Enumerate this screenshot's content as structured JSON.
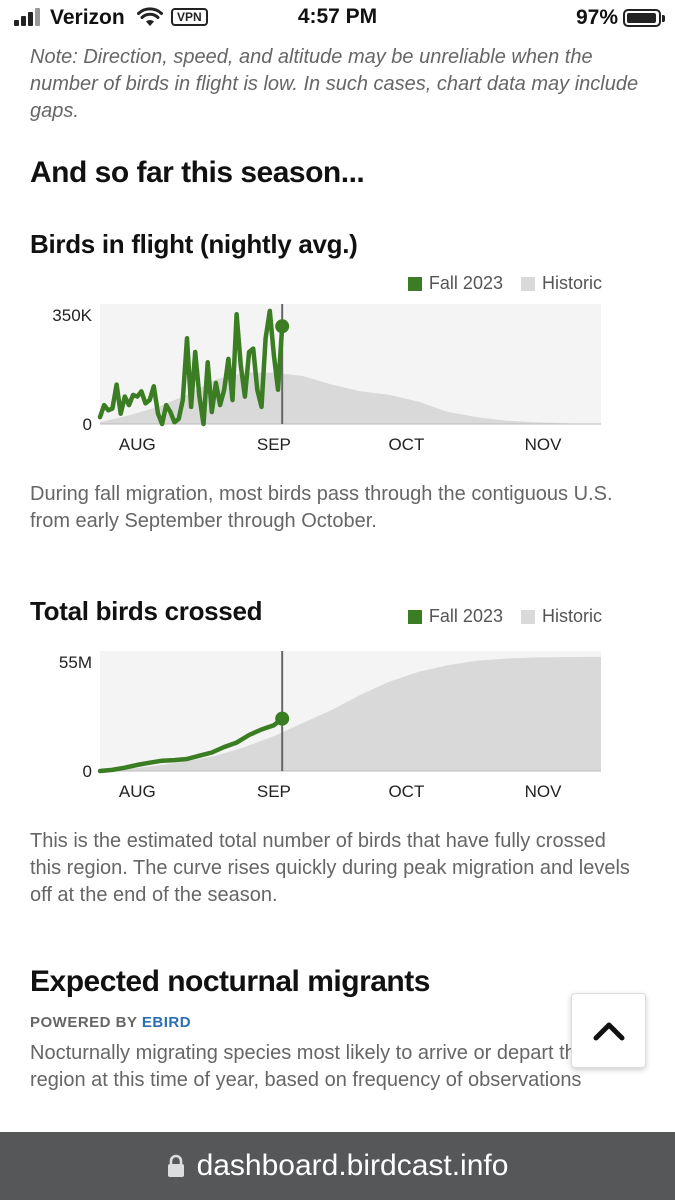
{
  "status": {
    "carrier": "Verizon",
    "vpn": "VPN",
    "time": "4:57 PM",
    "battery": "97%",
    "battery_level": 0.97
  },
  "note": "Note: Direction, speed, and altitude may be unreliable when the number of birds in flight is low. In such cases, chart data may include gaps.",
  "season_heading": "And so far this season...",
  "colors": {
    "fall": "#3a7d22",
    "historic": "#d9d9d9",
    "link": "#2a6fb3"
  },
  "flight_chart": {
    "heading": "Birds in flight (nightly avg.)",
    "legend": [
      "Fall 2023",
      "Historic"
    ],
    "chart_data": {
      "type": "area",
      "y_tick_labels": [
        "350K",
        "0"
      ],
      "x_tick_labels": [
        "AUG",
        "SEP",
        "OCT",
        "NOV"
      ],
      "ylim": [
        0,
        350000
      ],
      "current_date": "2023-09-14",
      "series": [
        {
          "name": "Fall 2023",
          "x": [
            "2023-08-01",
            "2023-08-02",
            "2023-08-03",
            "2023-08-04",
            "2023-08-05",
            "2023-08-06",
            "2023-08-07",
            "2023-08-08",
            "2023-08-09",
            "2023-08-10",
            "2023-08-11",
            "2023-08-12",
            "2023-08-13",
            "2023-08-14",
            "2023-08-15",
            "2023-08-16",
            "2023-08-17",
            "2023-08-18",
            "2023-08-19",
            "2023-08-20",
            "2023-08-21",
            "2023-08-22",
            "2023-08-23",
            "2023-08-24",
            "2023-08-25",
            "2023-08-26",
            "2023-08-27",
            "2023-08-28",
            "2023-08-29",
            "2023-08-30",
            "2023-08-31",
            "2023-09-01",
            "2023-09-02",
            "2023-09-03",
            "2023-09-04",
            "2023-09-05",
            "2023-09-06",
            "2023-09-07",
            "2023-09-08",
            "2023-09-09",
            "2023-09-10",
            "2023-09-11",
            "2023-09-12",
            "2023-09-13",
            "2023-09-14"
          ],
          "values": [
            20000,
            55000,
            40000,
            45000,
            115000,
            30000,
            80000,
            55000,
            85000,
            80000,
            95000,
            60000,
            70000,
            110000,
            30000,
            0,
            55000,
            35000,
            5000,
            15000,
            70000,
            250000,
            50000,
            210000,
            80000,
            0,
            180000,
            35000,
            120000,
            55000,
            100000,
            190000,
            70000,
            320000,
            170000,
            80000,
            210000,
            220000,
            100000,
            50000,
            250000,
            330000,
            200000,
            100000,
            285000
          ]
        },
        {
          "name": "Historic",
          "x": [
            "2023-08-01",
            "2023-08-08",
            "2023-08-15",
            "2023-08-22",
            "2023-08-29",
            "2023-09-05",
            "2023-09-12",
            "2023-09-19",
            "2023-09-26",
            "2023-10-03",
            "2023-10-10",
            "2023-10-17",
            "2023-10-24",
            "2023-10-31",
            "2023-11-07",
            "2023-11-14",
            "2023-11-21",
            "2023-11-28"
          ],
          "values": [
            5000,
            25000,
            50000,
            85000,
            130000,
            150000,
            150000,
            140000,
            115000,
            95000,
            85000,
            65000,
            35000,
            20000,
            10000,
            5000,
            2000,
            0
          ]
        }
      ]
    }
  },
  "flight_caption": "During fall migration, most birds pass through the contiguous U.S. from early September through October.",
  "crossed_chart": {
    "heading": "Total birds crossed",
    "legend": [
      "Fall 2023",
      "Historic"
    ],
    "chart_data": {
      "type": "area",
      "y_tick_labels": [
        "55M",
        "0"
      ],
      "x_tick_labels": [
        "AUG",
        "SEP",
        "OCT",
        "NOV"
      ],
      "ylim": [
        0,
        55000000
      ],
      "current_date": "2023-09-14",
      "series": [
        {
          "name": "Fall 2023",
          "x": [
            "2023-08-01",
            "2023-08-04",
            "2023-08-07",
            "2023-08-10",
            "2023-08-13",
            "2023-08-16",
            "2023-08-19",
            "2023-08-22",
            "2023-08-25",
            "2023-08-28",
            "2023-08-31",
            "2023-09-03",
            "2023-09-06",
            "2023-09-09",
            "2023-09-12",
            "2023-09-14"
          ],
          "values": [
            0,
            500000,
            1500000,
            2800000,
            3800000,
            4700000,
            5000000,
            5500000,
            7000000,
            8500000,
            11000000,
            13000000,
            16500000,
            19000000,
            21000000,
            24000000
          ]
        },
        {
          "name": "Historic",
          "x": [
            "2023-08-01",
            "2023-08-08",
            "2023-08-15",
            "2023-08-22",
            "2023-08-29",
            "2023-09-05",
            "2023-09-12",
            "2023-09-19",
            "2023-09-26",
            "2023-10-03",
            "2023-10-10",
            "2023-10-17",
            "2023-10-24",
            "2023-10-31",
            "2023-11-07",
            "2023-11-14",
            "2023-11-21",
            "2023-11-28"
          ],
          "values": [
            0,
            1000000,
            2500000,
            4500000,
            7000000,
            11000000,
            16000000,
            22000000,
            28000000,
            35000000,
            41000000,
            45500000,
            48500000,
            50500000,
            51500000,
            52000000,
            52200000,
            52300000
          ]
        }
      ]
    }
  },
  "crossed_caption": "This is the estimated total number of birds that have fully crossed this region. The curve rises quickly during peak migration and levels off at the end of the season.",
  "migrants": {
    "heading": "Expected nocturnal migrants",
    "powered_by": "POWERED BY",
    "powered_link": "EBIRD",
    "description": "Nocturnally migrating species most likely to arrive or depart this region at this time of year, based on frequency of observations"
  },
  "url": "dashboard.birdcast.info"
}
